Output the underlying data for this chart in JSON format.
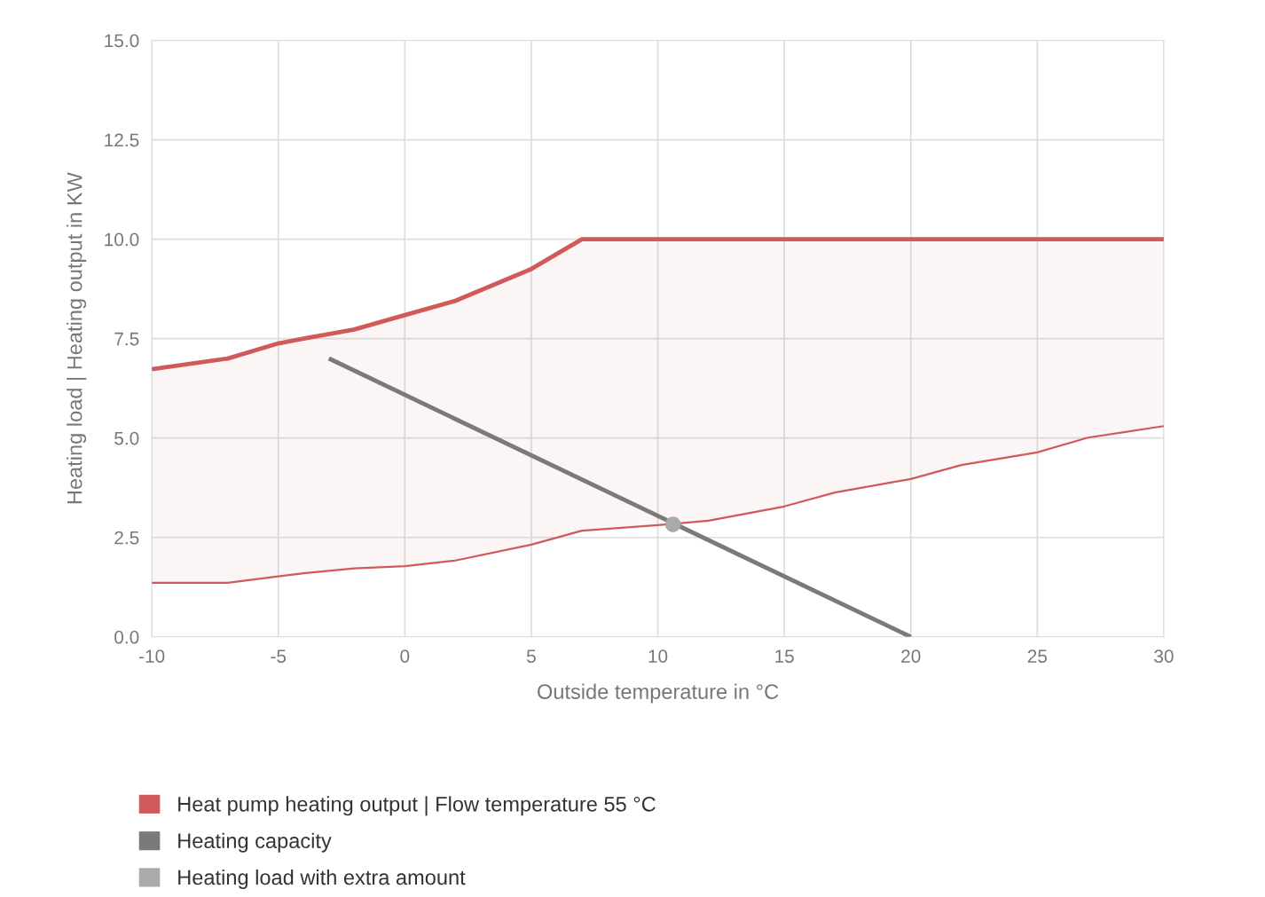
{
  "chart_data": {
    "type": "line",
    "xlabel": "Outside temperature in °C",
    "ylabel": "Heating load | Heating output in KW",
    "xlim": [
      -10,
      30
    ],
    "xticks": [
      -10,
      -5,
      0,
      5,
      10,
      15,
      20,
      25,
      30
    ],
    "ylim": [
      0,
      15
    ],
    "yticks": [
      {
        "value": 0,
        "label": "0.0"
      },
      {
        "value": 2.5,
        "label": "2.5"
      },
      {
        "value": 5,
        "label": "5.0"
      },
      {
        "value": 7.5,
        "label": "7.5"
      },
      {
        "value": 10,
        "label": "10.0"
      },
      {
        "value": 12.5,
        "label": "12.5"
      },
      {
        "value": 15,
        "label": "15.0"
      }
    ],
    "grid": true,
    "legend": "bottom",
    "series": [
      {
        "name": "Heat pump heating output | Flow temperature 55 °C",
        "color": "#d05a5a",
        "x": [
          -10,
          -7,
          -5,
          -4,
          -2,
          0,
          2,
          5,
          7,
          10,
          12,
          15,
          17,
          20,
          22,
          25,
          27,
          30
        ],
        "values": [
          6.73,
          7.0,
          7.38,
          7.5,
          7.73,
          8.09,
          8.45,
          9.25,
          10,
          10,
          10,
          10,
          10,
          10,
          10,
          10,
          10,
          10
        ],
        "lower": [
          1.36,
          1.36,
          1.52,
          1.6,
          1.72,
          1.78,
          1.92,
          2.32,
          2.67,
          2.81,
          2.92,
          3.28,
          3.63,
          3.97,
          4.32,
          4.64,
          5.01,
          5.3
        ],
        "upper": [
          6.73,
          7.0,
          7.38,
          7.5,
          7.73,
          8.09,
          8.45,
          9.25,
          10,
          10,
          10,
          10,
          10,
          10,
          10,
          10,
          10,
          10
        ]
      },
      {
        "color": "#d05a5a",
        "type": "line",
        "line_style": "solid",
        "x": [
          -10,
          -7,
          -5,
          -4,
          -2,
          0,
          2,
          5,
          7,
          10,
          12,
          15,
          17,
          20,
          22,
          25,
          27,
          30
        ],
        "values": [
          1.36,
          1.36,
          1.52,
          1.6,
          1.72,
          1.78,
          1.92,
          2.32,
          2.67,
          2.81,
          2.92,
          3.28,
          3.63,
          3.97,
          4.32,
          4.64,
          5.01,
          5.3
        ]
      },
      {
        "name": "Heating capacity",
        "color": "#7a7a7a",
        "type": "line",
        "x": [
          -3,
          20
        ],
        "values": [
          7.0,
          0
        ]
      },
      {
        "name": "Heating load with extra amount",
        "color": "#aaaaaa",
        "type": "scatter",
        "marker": "circle",
        "x": [
          10.6
        ],
        "values": [
          2.83
        ]
      }
    ]
  }
}
